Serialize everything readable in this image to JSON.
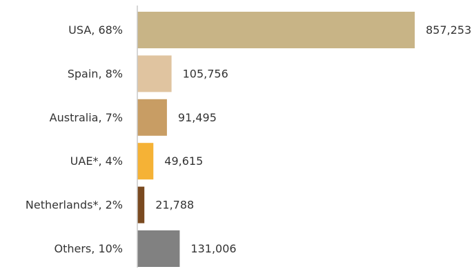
{
  "chart_data": {
    "type": "bar",
    "orientation": "horizontal",
    "title": "",
    "xlabel": "",
    "ylabel": "",
    "xlim": [
      0,
      857253
    ],
    "grid": false,
    "legend": "none",
    "categories": [
      "USA, 68%",
      "Spain, 8%",
      "Australia, 7%",
      "UAE*, 4%",
      "Netherlands*, 2%",
      "Others, 10%"
    ],
    "values": [
      857253,
      105756,
      91495,
      49615,
      21788,
      131006
    ],
    "value_labels": [
      "857,253",
      "105,756",
      "91,495",
      "49,615",
      "21,788",
      "131,006"
    ],
    "colors": [
      "#c8b486",
      "#e0c4a0",
      "#c89d64",
      "#f5b236",
      "#7a4a20",
      "#818181"
    ],
    "axis_color": "#c8c8c8"
  }
}
